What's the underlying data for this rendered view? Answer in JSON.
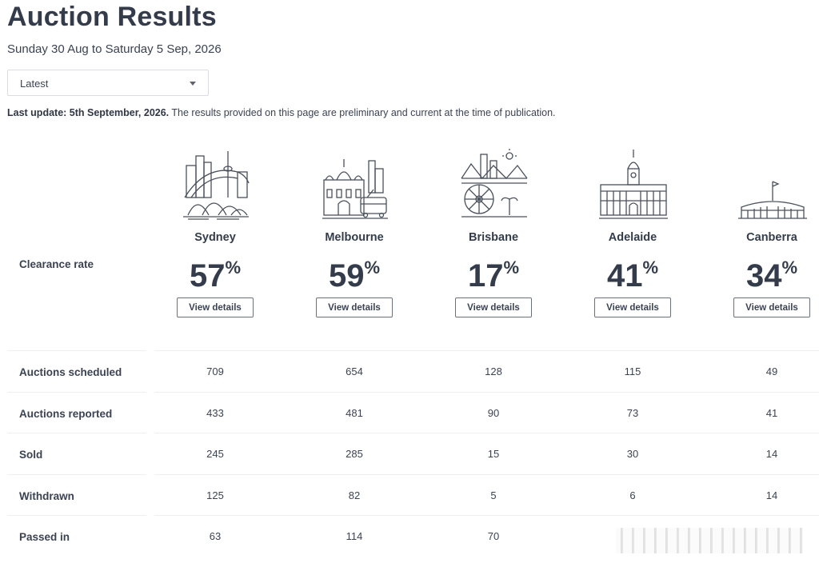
{
  "page": {
    "title": "Auction Results",
    "date_range": "Sunday 30 Aug to Saturday 5 Sep, 2026"
  },
  "period_select": {
    "value": "Latest"
  },
  "notice": {
    "bold": "Last update: 5th September, 2026.",
    "text": " The results provided on this page are preliminary and current at the time of publication."
  },
  "clearance": {
    "label": "Clearance rate",
    "percent_sign": "%",
    "button_label": "View details"
  },
  "cities": [
    {
      "name": "Sydney",
      "rate": "57",
      "icon": "sydney-skyline-icon"
    },
    {
      "name": "Melbourne",
      "rate": "59",
      "icon": "melbourne-skyline-icon"
    },
    {
      "name": "Brisbane",
      "rate": "17",
      "icon": "brisbane-skyline-icon"
    },
    {
      "name": "Adelaide",
      "rate": "41",
      "icon": "adelaide-skyline-icon"
    },
    {
      "name": "Canberra",
      "rate": "34",
      "icon": "canberra-parliament-icon"
    }
  ],
  "rows": [
    {
      "label": "Auctions scheduled",
      "values": [
        "709",
        "654",
        "128",
        "115",
        "49"
      ]
    },
    {
      "label": "Auctions reported",
      "values": [
        "433",
        "481",
        "90",
        "73",
        "41"
      ]
    },
    {
      "label": "Sold",
      "values": [
        "245",
        "285",
        "15",
        "30",
        "14"
      ]
    },
    {
      "label": "Withdrawn",
      "values": [
        "125",
        "82",
        "5",
        "6",
        "14"
      ]
    },
    {
      "label": "Passed in",
      "values": [
        "63",
        "114",
        "70",
        "",
        ""
      ]
    }
  ]
}
